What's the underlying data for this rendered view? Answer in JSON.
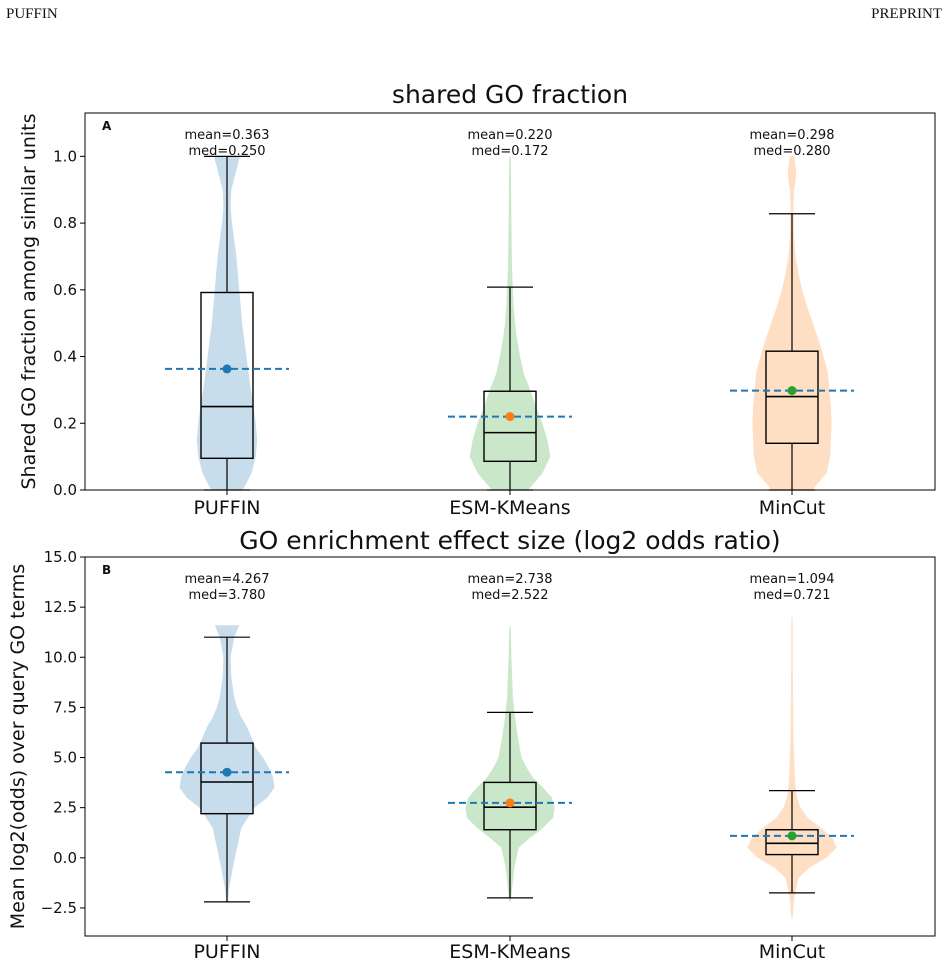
{
  "header": {
    "left": "PUFFIN",
    "right": "PREPRINT"
  },
  "colors": {
    "violin": [
      "#1f77b4",
      "#2ca02c",
      "#ff7f0e"
    ],
    "mean_dot": [
      "#1f77b4",
      "#ff7f0e",
      "#2ca02c"
    ],
    "mean_line": "#1f77b4",
    "box": "#000000"
  },
  "chart_data": [
    {
      "type": "violin",
      "panel_letter": "A",
      "title": "shared GO fraction",
      "ylabel": "Shared GO fraction among similar units",
      "categories": [
        "PUFFIN",
        "ESM-KMeans",
        "MinCut"
      ],
      "ylim": [
        0,
        1.13
      ],
      "yticks": [
        0.0,
        0.2,
        0.4,
        0.6,
        0.8,
        1.0
      ],
      "ytick_labels": [
        "0.0",
        "0.2",
        "0.4",
        "0.6",
        "0.8",
        "1.0"
      ],
      "grid": false,
      "series": [
        {
          "category": "PUFFIN",
          "mean": 0.363,
          "median": 0.25,
          "q1": 0.095,
          "q3": 0.592,
          "whisker_low": 0.0,
          "whisker_high": 1.0,
          "annotation": [
            "mean=0.363",
            "med=0.250"
          ],
          "density": [
            [
              0.0,
              0.22
            ],
            [
              0.05,
              0.34
            ],
            [
              0.1,
              0.4
            ],
            [
              0.15,
              0.42
            ],
            [
              0.2,
              0.4
            ],
            [
              0.25,
              0.37
            ],
            [
              0.3,
              0.33
            ],
            [
              0.35,
              0.3
            ],
            [
              0.4,
              0.27
            ],
            [
              0.45,
              0.24
            ],
            [
              0.5,
              0.21
            ],
            [
              0.55,
              0.19
            ],
            [
              0.6,
              0.17
            ],
            [
              0.65,
              0.15
            ],
            [
              0.7,
              0.13
            ],
            [
              0.75,
              0.1
            ],
            [
              0.8,
              0.07
            ],
            [
              0.85,
              0.05
            ],
            [
              0.9,
              0.06
            ],
            [
              0.95,
              0.12
            ],
            [
              1.0,
              0.18
            ]
          ]
        },
        {
          "category": "ESM-KMeans",
          "mean": 0.22,
          "median": 0.172,
          "q1": 0.086,
          "q3": 0.296,
          "whisker_low": 0.0,
          "whisker_high": 0.608,
          "annotation": [
            "mean=0.220",
            "med=0.172"
          ],
          "density": [
            [
              0.0,
              0.25
            ],
            [
              0.05,
              0.45
            ],
            [
              0.1,
              0.56
            ],
            [
              0.15,
              0.52
            ],
            [
              0.2,
              0.45
            ],
            [
              0.25,
              0.36
            ],
            [
              0.3,
              0.28
            ],
            [
              0.35,
              0.19
            ],
            [
              0.4,
              0.14
            ],
            [
              0.45,
              0.1
            ],
            [
              0.5,
              0.07
            ],
            [
              0.55,
              0.05
            ],
            [
              0.6,
              0.04
            ],
            [
              0.65,
              0.03
            ],
            [
              0.7,
              0.025
            ],
            [
              0.8,
              0.02
            ],
            [
              0.9,
              0.015
            ],
            [
              1.0,
              0.01
            ]
          ]
        },
        {
          "category": "MinCut",
          "mean": 0.298,
          "median": 0.28,
          "q1": 0.14,
          "q3": 0.416,
          "whisker_low": 0.0,
          "whisker_high": 0.828,
          "annotation": [
            "mean=0.298",
            "med=0.280"
          ],
          "density": [
            [
              0.0,
              0.28
            ],
            [
              0.05,
              0.48
            ],
            [
              0.1,
              0.53
            ],
            [
              0.15,
              0.54
            ],
            [
              0.2,
              0.55
            ],
            [
              0.25,
              0.54
            ],
            [
              0.3,
              0.52
            ],
            [
              0.35,
              0.5
            ],
            [
              0.4,
              0.44
            ],
            [
              0.45,
              0.37
            ],
            [
              0.5,
              0.29
            ],
            [
              0.55,
              0.21
            ],
            [
              0.6,
              0.14
            ],
            [
              0.65,
              0.09
            ],
            [
              0.7,
              0.05
            ],
            [
              0.75,
              0.03
            ],
            [
              0.8,
              0.025
            ],
            [
              0.85,
              0.02
            ],
            [
              0.9,
              0.03
            ],
            [
              0.95,
              0.06
            ],
            [
              1.0,
              0.03
            ]
          ]
        }
      ]
    },
    {
      "type": "violin",
      "panel_letter": "B",
      "title": "GO enrichment effect size (log2 odds ratio)",
      "ylabel": "Mean log2(odds) over query GO terms",
      "categories": [
        "PUFFIN",
        "ESM-KMeans",
        "MinCut"
      ],
      "ylim": [
        -3.9,
        15.0
      ],
      "yticks": [
        -2.5,
        0.0,
        2.5,
        5.0,
        7.5,
        10.0,
        12.5,
        15.0
      ],
      "ytick_labels": [
        "−2.5",
        "0.0",
        "2.5",
        "5.0",
        "7.5",
        "10.0",
        "12.5",
        "15.0"
      ],
      "grid": false,
      "series": [
        {
          "category": "PUFFIN",
          "mean": 4.267,
          "median": 3.78,
          "q1": 2.2,
          "q3": 5.72,
          "whisker_low": -2.2,
          "whisker_high": 11.0,
          "annotation": [
            "mean=4.267",
            "med=3.780"
          ],
          "density": [
            [
              -2.2,
              0.01
            ],
            [
              -1.5,
              0.03
            ],
            [
              -0.5,
              0.08
            ],
            [
              0.5,
              0.14
            ],
            [
              1.5,
              0.2
            ],
            [
              2.5,
              0.38
            ],
            [
              3.0,
              0.56
            ],
            [
              3.5,
              0.66
            ],
            [
              4.0,
              0.64
            ],
            [
              4.5,
              0.58
            ],
            [
              5.0,
              0.5
            ],
            [
              5.5,
              0.4
            ],
            [
              6.0,
              0.34
            ],
            [
              6.5,
              0.28
            ],
            [
              7.0,
              0.2
            ],
            [
              7.5,
              0.14
            ],
            [
              8.0,
              0.1
            ],
            [
              8.5,
              0.08
            ],
            [
              9.0,
              0.06
            ],
            [
              10.0,
              0.05
            ],
            [
              11.0,
              0.1
            ],
            [
              11.6,
              0.17
            ]
          ]
        },
        {
          "category": "ESM-KMeans",
          "mean": 2.738,
          "median": 2.522,
          "q1": 1.4,
          "q3": 3.76,
          "whisker_low": -2.0,
          "whisker_high": 7.25,
          "annotation": [
            "mean=2.738",
            "med=2.522"
          ],
          "density": [
            [
              -2.2,
              0.01
            ],
            [
              -1.5,
              0.03
            ],
            [
              -0.5,
              0.06
            ],
            [
              0.5,
              0.12
            ],
            [
              1.0,
              0.28
            ],
            [
              1.5,
              0.46
            ],
            [
              2.0,
              0.6
            ],
            [
              2.5,
              0.62
            ],
            [
              3.0,
              0.58
            ],
            [
              3.5,
              0.46
            ],
            [
              4.0,
              0.32
            ],
            [
              4.5,
              0.23
            ],
            [
              5.0,
              0.16
            ],
            [
              6.0,
              0.11
            ],
            [
              7.0,
              0.07
            ],
            [
              8.0,
              0.04
            ],
            [
              9.0,
              0.03
            ],
            [
              10.0,
              0.02
            ],
            [
              11.5,
              0.01
            ]
          ]
        },
        {
          "category": "MinCut",
          "mean": 1.094,
          "median": 0.721,
          "q1": 0.16,
          "q3": 1.4,
          "whisker_low": -1.75,
          "whisker_high": 3.35,
          "annotation": [
            "mean=1.094",
            "med=0.721"
          ],
          "density": [
            [
              -3.0,
              0.01
            ],
            [
              -2.0,
              0.03
            ],
            [
              -1.0,
              0.09
            ],
            [
              -0.5,
              0.24
            ],
            [
              0.0,
              0.48
            ],
            [
              0.5,
              0.62
            ],
            [
              1.0,
              0.56
            ],
            [
              1.5,
              0.4
            ],
            [
              2.0,
              0.22
            ],
            [
              2.5,
              0.12
            ],
            [
              3.0,
              0.07
            ],
            [
              3.5,
              0.05
            ],
            [
              4.0,
              0.04
            ],
            [
              5.0,
              0.03
            ],
            [
              6.0,
              0.02
            ],
            [
              8.0,
              0.015
            ],
            [
              10.0,
              0.01
            ],
            [
              12.0,
              0.01
            ]
          ]
        }
      ]
    }
  ]
}
